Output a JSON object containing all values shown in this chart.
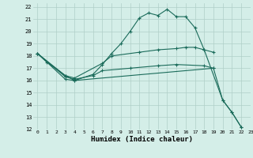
{
  "xlabel": "Humidex (Indice chaleur)",
  "bg_color": "#d4eee8",
  "grid_color": "#b0cfc8",
  "line_color": "#1a6b5a",
  "xlim": [
    -0.5,
    23
  ],
  "ylim": [
    12,
    22.3
  ],
  "xticks": [
    0,
    1,
    2,
    3,
    4,
    5,
    6,
    7,
    8,
    9,
    10,
    11,
    12,
    13,
    14,
    15,
    16,
    17,
    18,
    19,
    20,
    21,
    22,
    23
  ],
  "yticks": [
    12,
    13,
    14,
    15,
    16,
    17,
    18,
    19,
    20,
    21,
    22
  ],
  "lines": [
    {
      "x": [
        0,
        1,
        3,
        4,
        6,
        7,
        8,
        9,
        10,
        11,
        12,
        13,
        14,
        15,
        16,
        17,
        18,
        20,
        21,
        22
      ],
      "y": [
        18.2,
        17.5,
        16.4,
        16.0,
        16.5,
        17.3,
        18.2,
        19.0,
        20.0,
        21.1,
        21.5,
        21.3,
        21.8,
        21.2,
        21.2,
        20.3,
        18.5,
        14.4,
        13.4,
        12.2
      ]
    },
    {
      "x": [
        0,
        3,
        4,
        7,
        8,
        11,
        13,
        15,
        16,
        17,
        18,
        19
      ],
      "y": [
        18.2,
        16.4,
        16.2,
        17.4,
        18.0,
        18.3,
        18.5,
        18.6,
        18.7,
        18.7,
        18.5,
        18.3
      ]
    },
    {
      "x": [
        0,
        3,
        4,
        6,
        7,
        10,
        13,
        15,
        18,
        19
      ],
      "y": [
        18.2,
        16.3,
        16.1,
        16.4,
        16.8,
        17.0,
        17.2,
        17.3,
        17.2,
        17.0
      ]
    },
    {
      "x": [
        0,
        3,
        4,
        19,
        20,
        21,
        22
      ],
      "y": [
        18.2,
        16.1,
        16.0,
        17.0,
        14.4,
        13.4,
        12.2
      ]
    }
  ]
}
